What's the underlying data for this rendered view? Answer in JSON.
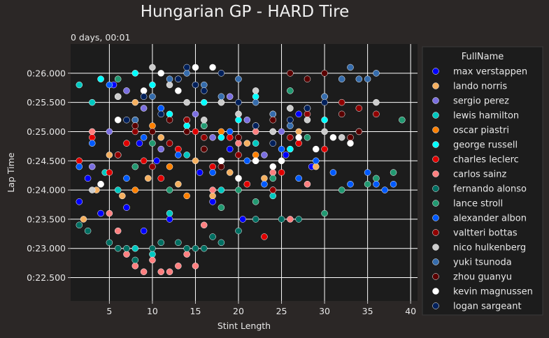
{
  "chart_data": {
    "type": "scatter",
    "title": "Hungarian GP - HARD Tire",
    "annotation": "0 days, 00:01",
    "xlabel": "Stint Length",
    "ylabel": "Lap Time",
    "xlim": [
      0.5,
      40.8
    ],
    "ylim": [
      22.1,
      26.5
    ],
    "x_ticks": [
      5,
      10,
      15,
      20,
      25,
      30,
      35,
      40
    ],
    "y_ticks": [
      {
        "value": 22.5,
        "label": "0:22.500"
      },
      {
        "value": 23.0,
        "label": "0:23.000"
      },
      {
        "value": 23.5,
        "label": "0:23.500"
      },
      {
        "value": 24.0,
        "label": "0:24.000"
      },
      {
        "value": 24.5,
        "label": "0:24.500"
      },
      {
        "value": 25.0,
        "label": "0:25.000"
      },
      {
        "value": 25.5,
        "label": "0:25.500"
      },
      {
        "value": 26.0,
        "label": "0:26.000"
      }
    ],
    "grid": true,
    "legend_title": "FullName",
    "legend_position": "right",
    "colors": {
      "background": "#2b2726",
      "plot_background": "#1c1c1c",
      "grid": "#ffffff"
    },
    "series": [
      {
        "name": "max verstappen",
        "color": "#0000ff",
        "points": [
          [
            1.5,
            23.8
          ],
          [
            2.5,
            24.2
          ],
          [
            4,
            23.6
          ],
          [
            5.5,
            25.8
          ],
          [
            7,
            23.7
          ],
          [
            8.5,
            24.8
          ],
          [
            9,
            23.3
          ],
          [
            10.5,
            24.5
          ],
          [
            12,
            23.5
          ],
          [
            14,
            25.2
          ],
          [
            15.5,
            24.3
          ],
          [
            17,
            23.8
          ],
          [
            19,
            24.7
          ],
          [
            20.5,
            23.5
          ],
          [
            22,
            25.1
          ],
          [
            24,
            24.0
          ],
          [
            25.5,
            24.6
          ],
          [
            27,
            25.3
          ],
          [
            28.5,
            24.4
          ]
        ]
      },
      {
        "name": "lando norris",
        "color": "#f5b060",
        "points": [
          [
            2,
            23.5
          ],
          [
            3.5,
            24.0
          ],
          [
            5,
            24.6
          ],
          [
            6.5,
            23.9
          ],
          [
            8,
            25.5
          ],
          [
            9.5,
            24.2
          ],
          [
            11,
            24.9
          ],
          [
            13,
            24.1
          ],
          [
            15,
            24.5
          ],
          [
            17,
            23.9
          ],
          [
            19,
            24.3
          ],
          [
            21,
            24.8
          ],
          [
            23,
            24.2
          ],
          [
            25,
            24.5
          ],
          [
            27,
            25.0
          ],
          [
            29,
            24.4
          ]
        ]
      },
      {
        "name": "sergio perez",
        "color": "#7b6fe0",
        "points": [
          [
            3,
            24.4
          ],
          [
            5,
            25.0
          ],
          [
            7,
            25.7
          ],
          [
            9,
            25.4
          ],
          [
            11,
            24.7
          ],
          [
            13,
            25.9
          ],
          [
            15,
            25.3
          ],
          [
            17,
            24.9
          ],
          [
            19,
            25.6
          ],
          [
            21,
            25.2
          ],
          [
            23,
            24.6
          ],
          [
            25,
            25.0
          ]
        ]
      },
      {
        "name": "lewis hamilton",
        "color": "#00c8c0",
        "points": [
          [
            1.5,
            25.8
          ],
          [
            3,
            25.5
          ],
          [
            4.5,
            24.3
          ],
          [
            6,
            24.0
          ],
          [
            8,
            23.0
          ],
          [
            10,
            22.9
          ],
          [
            12,
            23.6
          ],
          [
            14,
            24.6
          ],
          [
            16,
            25.1
          ],
          [
            18,
            24.0
          ],
          [
            20,
            25.3
          ],
          [
            22,
            24.8
          ],
          [
            24,
            23.9
          ],
          [
            26,
            25.4
          ]
        ]
      },
      {
        "name": "oscar piastri",
        "color": "#ff8000",
        "points": [
          [
            4,
            24.1
          ],
          [
            6,
            24.6
          ],
          [
            8,
            24.0
          ],
          [
            10,
            25.1
          ],
          [
            12,
            24.4
          ],
          [
            14,
            23.9
          ],
          [
            16,
            24.7
          ],
          [
            18,
            25.0
          ],
          [
            20,
            24.2
          ],
          [
            22,
            24.6
          ],
          [
            24,
            25.3
          ]
        ]
      },
      {
        "name": "george russell",
        "color": "#00ffff",
        "points": [
          [
            4,
            25.9
          ],
          [
            6,
            25.6
          ],
          [
            8,
            26.0
          ],
          [
            10,
            25.8
          ],
          [
            12,
            25.3
          ],
          [
            14,
            25.1
          ],
          [
            16,
            25.5
          ],
          [
            18,
            24.9
          ],
          [
            20,
            25.2
          ],
          [
            22,
            25.6
          ],
          [
            24,
            25.0
          ],
          [
            26,
            24.7
          ],
          [
            28,
            25.4
          ],
          [
            30,
            25.2
          ]
        ]
      },
      {
        "name": "charles leclerc",
        "color": "#e00000",
        "points": [
          [
            1.5,
            24.5
          ],
          [
            3,
            24.9
          ],
          [
            5,
            24.3
          ],
          [
            7,
            24.8
          ],
          [
            9,
            24.5
          ],
          [
            11,
            24.2
          ],
          [
            13,
            24.7
          ],
          [
            15,
            25.0
          ],
          [
            17,
            24.4
          ],
          [
            19,
            24.9
          ],
          [
            21,
            24.1
          ],
          [
            23,
            23.2
          ],
          [
            25,
            24.3
          ],
          [
            27,
            24.8
          ],
          [
            30,
            24.7
          ]
        ]
      },
      {
        "name": "carlos sainz",
        "color": "#ff8080",
        "points": [
          [
            3,
            25.0
          ],
          [
            5,
            23.6
          ],
          [
            6,
            23.3
          ],
          [
            7,
            22.9
          ],
          [
            8,
            22.7
          ],
          [
            9,
            22.6
          ],
          [
            10,
            22.8
          ],
          [
            11,
            22.6
          ],
          [
            12,
            22.6
          ],
          [
            13,
            22.7
          ],
          [
            14,
            22.9
          ],
          [
            15,
            22.7
          ],
          [
            16,
            23.4
          ],
          [
            17,
            24.0
          ],
          [
            18,
            24.5
          ],
          [
            20,
            24.8
          ],
          [
            22,
            25.0
          ],
          [
            24,
            24.3
          ],
          [
            26,
            23.5
          ],
          [
            28,
            24.1
          ]
        ]
      },
      {
        "name": "fernando alonso",
        "color": "#006f62",
        "points": [
          [
            1.5,
            23.4
          ],
          [
            2.5,
            23.3
          ],
          [
            5,
            23.1
          ],
          [
            6,
            23.0
          ],
          [
            7,
            23.0
          ],
          [
            8,
            22.8
          ],
          [
            10,
            23.0
          ],
          [
            11,
            23.1
          ],
          [
            13,
            23.1
          ],
          [
            14,
            23.0
          ],
          [
            15,
            23.0
          ],
          [
            16,
            23.0
          ],
          [
            17,
            23.2
          ],
          [
            18,
            23.1
          ],
          [
            20,
            23.3
          ],
          [
            22,
            23.5
          ],
          [
            25,
            23.5
          ],
          [
            27,
            23.5
          ]
        ]
      },
      {
        "name": "lance stroll",
        "color": "#229971",
        "points": [
          [
            6,
            25.9
          ],
          [
            8,
            24.4
          ],
          [
            10,
            24.8
          ],
          [
            12,
            24.0
          ],
          [
            14,
            25.0
          ],
          [
            16,
            25.1
          ],
          [
            18,
            23.7
          ],
          [
            20,
            24.0
          ],
          [
            22,
            23.8
          ],
          [
            24,
            24.2
          ],
          [
            26,
            25.7
          ],
          [
            28,
            24.9
          ],
          [
            30,
            23.6
          ],
          [
            32,
            24.0
          ],
          [
            35,
            24.1
          ],
          [
            36,
            24.2
          ],
          [
            38,
            24.3
          ],
          [
            39,
            25.2
          ]
        ]
      },
      {
        "name": "alexander albon",
        "color": "#005aff",
        "points": [
          [
            1.5,
            24.4
          ],
          [
            3,
            24.8
          ],
          [
            5,
            25.8
          ],
          [
            7,
            24.2
          ],
          [
            9,
            24.9
          ],
          [
            11,
            25.4
          ],
          [
            13,
            24.6
          ],
          [
            15,
            25.8
          ],
          [
            17,
            24.3
          ],
          [
            19,
            25.0
          ],
          [
            21,
            24.5
          ],
          [
            23,
            24.1
          ],
          [
            25,
            24.7
          ],
          [
            27,
            24.2
          ],
          [
            29,
            24.5
          ],
          [
            31,
            24.3
          ],
          [
            33,
            24.1
          ],
          [
            35,
            24.3
          ],
          [
            36,
            24.1
          ],
          [
            37,
            24.0
          ],
          [
            38,
            24.1
          ]
        ]
      },
      {
        "name": "valtteri bottas",
        "color": "#900000",
        "points": [
          [
            6,
            24.6
          ],
          [
            8,
            25.0
          ],
          [
            10,
            24.4
          ],
          [
            12,
            24.8
          ],
          [
            14,
            25.2
          ],
          [
            16,
            24.9
          ],
          [
            18,
            25.5
          ],
          [
            20,
            24.6
          ],
          [
            22,
            25.1
          ],
          [
            24,
            24.0
          ],
          [
            26,
            24.9
          ],
          [
            28,
            25.3
          ],
          [
            30,
            25.6
          ],
          [
            32,
            25.5
          ],
          [
            34,
            25.4
          ],
          [
            36,
            25.3
          ]
        ]
      },
      {
        "name": "nico hulkenberg",
        "color": "#cccccc",
        "points": [
          [
            3,
            24.0
          ],
          [
            6,
            25.6
          ],
          [
            8,
            25.2
          ],
          [
            10,
            26.1
          ],
          [
            12,
            25.8
          ],
          [
            14,
            25.5
          ],
          [
            16,
            25.2
          ],
          [
            18,
            25.5
          ],
          [
            20,
            25.3
          ],
          [
            22,
            25.7
          ],
          [
            24,
            25.0
          ],
          [
            26,
            25.4
          ],
          [
            28,
            25.2
          ],
          [
            30,
            25.0
          ],
          [
            32,
            24.9
          ],
          [
            34,
            25.0
          ],
          [
            36,
            25.5
          ]
        ]
      },
      {
        "name": "yuki tsunoda",
        "color": "#356cac",
        "points": [
          [
            8,
            25.2
          ],
          [
            10,
            25.6
          ],
          [
            12,
            25.9
          ],
          [
            14,
            26.0
          ],
          [
            16,
            25.8
          ],
          [
            18,
            25.6
          ],
          [
            20,
            25.9
          ],
          [
            22,
            25.5
          ],
          [
            24,
            25.3
          ],
          [
            26,
            25.1
          ],
          [
            28,
            25.4
          ],
          [
            30,
            25.6
          ],
          [
            32,
            25.9
          ],
          [
            33,
            26.1
          ],
          [
            34,
            25.9
          ],
          [
            35,
            25.9
          ],
          [
            36,
            26.0
          ]
        ]
      },
      {
        "name": "zhou guanyu",
        "color": "#5a0000",
        "points": [
          [
            8,
            25.1
          ],
          [
            10,
            25.0
          ],
          [
            12,
            25.2
          ],
          [
            14,
            25.0
          ],
          [
            16,
            24.7
          ],
          [
            18,
            24.4
          ],
          [
            20,
            24.9
          ],
          [
            22,
            24.5
          ],
          [
            24,
            25.2
          ],
          [
            26,
            26.0
          ],
          [
            28,
            25.9
          ],
          [
            30,
            26.0
          ],
          [
            32,
            25.3
          ],
          [
            33,
            24.9
          ],
          [
            34,
            25.0
          ]
        ]
      },
      {
        "name": "kevin magnussen",
        "color": "#ffffff",
        "points": [
          [
            4,
            24.1
          ],
          [
            6,
            25.2
          ],
          [
            9,
            25.7
          ],
          [
            11,
            26.0
          ],
          [
            13,
            25.7
          ],
          [
            15,
            26.1
          ],
          [
            17,
            26.1
          ],
          [
            18,
            24.5
          ],
          [
            20,
            24.2
          ],
          [
            22,
            24.5
          ],
          [
            24,
            24.4
          ],
          [
            25,
            24.5
          ],
          [
            27,
            24.9
          ],
          [
            29,
            24.7
          ],
          [
            31,
            24.9
          ],
          [
            33,
            24.8
          ]
        ]
      },
      {
        "name": "logan sargeant",
        "color": "#00205b",
        "points": [
          [
            7,
            25.2
          ],
          [
            9,
            25.6
          ],
          [
            11,
            25.3
          ],
          [
            13,
            25.9
          ],
          [
            14,
            26.1
          ],
          [
            15,
            25.8
          ],
          [
            16,
            25.7
          ],
          [
            18,
            26.0
          ],
          [
            20,
            25.5
          ],
          [
            22,
            25.1
          ],
          [
            24,
            24.8
          ],
          [
            26,
            25.2
          ],
          [
            28,
            25.4
          ],
          [
            30,
            25.5
          ]
        ]
      }
    ]
  }
}
